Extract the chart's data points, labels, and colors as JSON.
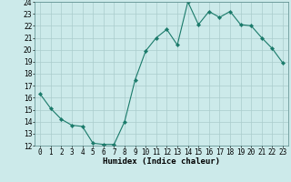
{
  "x": [
    0,
    1,
    2,
    3,
    4,
    5,
    6,
    7,
    8,
    9,
    10,
    11,
    12,
    13,
    14,
    15,
    16,
    17,
    18,
    19,
    20,
    21,
    22,
    23
  ],
  "y": [
    16.3,
    15.1,
    14.2,
    13.7,
    13.6,
    12.2,
    12.1,
    12.1,
    14.0,
    17.5,
    19.9,
    21.0,
    21.7,
    20.4,
    24.0,
    22.1,
    23.2,
    22.7,
    23.2,
    22.1,
    22.0,
    21.0,
    20.1,
    18.9
  ],
  "line_color": "#1a7a6a",
  "marker": "D",
  "marker_size": 2.2,
  "bg_color": "#cceaea",
  "grid_color": "#aacccc",
  "xlabel": "Humidex (Indice chaleur)",
  "xlim": [
    -0.5,
    23.5
  ],
  "ylim": [
    12,
    24
  ],
  "yticks": [
    12,
    13,
    14,
    15,
    16,
    17,
    18,
    19,
    20,
    21,
    22,
    23,
    24
  ],
  "xtick_labels": [
    "0",
    "1",
    "2",
    "3",
    "4",
    "5",
    "6",
    "7",
    "8",
    "9",
    "10",
    "11",
    "12",
    "13",
    "14",
    "15",
    "16",
    "17",
    "18",
    "19",
    "20",
    "21",
    "22",
    "23"
  ],
  "label_fontsize": 6.5,
  "tick_fontsize": 5.5
}
